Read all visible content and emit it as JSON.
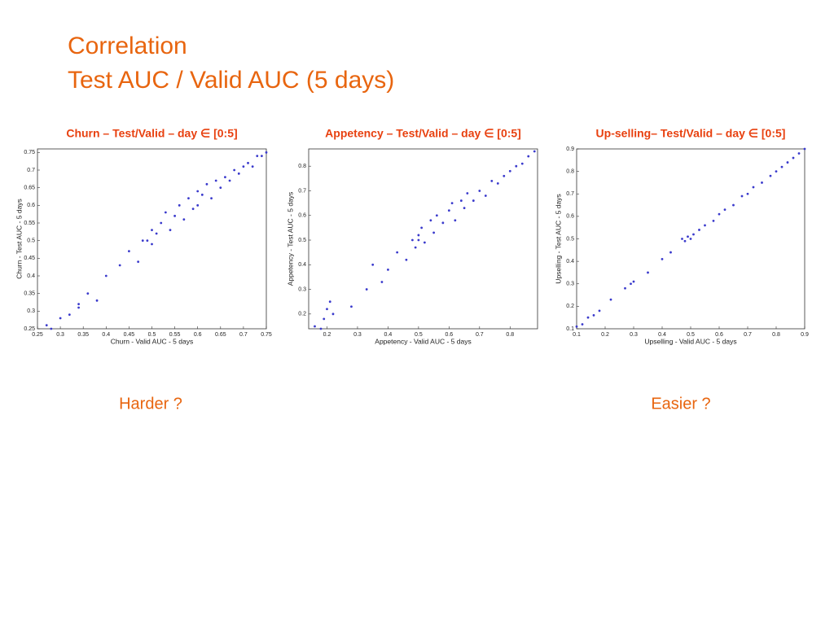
{
  "slide": {
    "title_line_1": "Correlation",
    "title_line_2": "Test AUC / Valid AUC (5 days)"
  },
  "notes": [
    "Harder ?",
    "Easier ?"
  ],
  "chart_data": [
    {
      "type": "scatter",
      "title": "Churn – Test/Valid – day ∈ [0:5]",
      "x_label": "Churn - Valid AUC - 5 days",
      "y_label": "Churn - Test AUC - 5 days",
      "color": "#3a3acc",
      "xlim": [
        0.25,
        0.75
      ],
      "ylim": [
        0.25,
        0.76
      ],
      "xticks": [
        0.25,
        0.3,
        0.35,
        0.4,
        0.45,
        0.5,
        0.55,
        0.6,
        0.65,
        0.7,
        0.75
      ],
      "yticks": [
        0.25,
        0.3,
        0.35,
        0.4,
        0.45,
        0.5,
        0.55,
        0.6,
        0.65,
        0.7,
        0.75
      ],
      "x": [
        0.27,
        0.28,
        0.3,
        0.32,
        0.34,
        0.34,
        0.36,
        0.38,
        0.4,
        0.43,
        0.45,
        0.47,
        0.48,
        0.49,
        0.5,
        0.5,
        0.51,
        0.52,
        0.53,
        0.54,
        0.55,
        0.56,
        0.57,
        0.58,
        0.59,
        0.6,
        0.6,
        0.61,
        0.62,
        0.63,
        0.64,
        0.65,
        0.66,
        0.67,
        0.68,
        0.69,
        0.7,
        0.71,
        0.72,
        0.73,
        0.74,
        0.75
      ],
      "y": [
        0.26,
        0.25,
        0.28,
        0.29,
        0.32,
        0.31,
        0.35,
        0.33,
        0.4,
        0.43,
        0.47,
        0.44,
        0.5,
        0.5,
        0.49,
        0.53,
        0.52,
        0.55,
        0.58,
        0.53,
        0.57,
        0.6,
        0.56,
        0.62,
        0.59,
        0.64,
        0.6,
        0.63,
        0.66,
        0.62,
        0.67,
        0.65,
        0.68,
        0.67,
        0.7,
        0.69,
        0.71,
        0.72,
        0.71,
        0.74,
        0.74,
        0.75
      ]
    },
    {
      "type": "scatter",
      "title": "Appetency – Test/Valid – day ∈ [0:5]",
      "x_label": "Appetency - Valid AUC - 5 days",
      "y_label": "Appetency - Test AUC - 5 days",
      "color": "#3a3acc",
      "xlim": [
        0.14,
        0.89
      ],
      "ylim": [
        0.14,
        0.87
      ],
      "xticks": [
        0.2,
        0.3,
        0.4,
        0.5,
        0.6,
        0.7,
        0.8
      ],
      "yticks": [
        0.2,
        0.3,
        0.4,
        0.5,
        0.6,
        0.7,
        0.8
      ],
      "x": [
        0.16,
        0.18,
        0.19,
        0.2,
        0.21,
        0.22,
        0.28,
        0.33,
        0.35,
        0.38,
        0.4,
        0.43,
        0.46,
        0.48,
        0.49,
        0.5,
        0.5,
        0.51,
        0.52,
        0.54,
        0.55,
        0.56,
        0.58,
        0.6,
        0.61,
        0.62,
        0.64,
        0.65,
        0.66,
        0.68,
        0.7,
        0.72,
        0.74,
        0.76,
        0.78,
        0.8,
        0.82,
        0.84,
        0.86,
        0.88
      ],
      "y": [
        0.15,
        0.14,
        0.18,
        0.22,
        0.25,
        0.2,
        0.23,
        0.3,
        0.4,
        0.33,
        0.38,
        0.45,
        0.42,
        0.5,
        0.47,
        0.5,
        0.52,
        0.55,
        0.49,
        0.58,
        0.53,
        0.6,
        0.57,
        0.62,
        0.65,
        0.58,
        0.66,
        0.63,
        0.69,
        0.66,
        0.7,
        0.68,
        0.74,
        0.73,
        0.76,
        0.78,
        0.8,
        0.81,
        0.84,
        0.86
      ]
    },
    {
      "type": "scatter",
      "title": "Up-selling– Test/Valid – day ∈ [0:5]",
      "x_label": "Upselling - Valid AUC - 5 days",
      "y_label": "Upselling - Test AUC - 5 days",
      "color": "#3a3acc",
      "xlim": [
        0.1,
        0.9
      ],
      "ylim": [
        0.1,
        0.9
      ],
      "xticks": [
        0.1,
        0.2,
        0.3,
        0.4,
        0.5,
        0.6,
        0.7,
        0.8,
        0.9
      ],
      "yticks": [
        0.1,
        0.2,
        0.3,
        0.4,
        0.5,
        0.6,
        0.7,
        0.8,
        0.9
      ],
      "x": [
        0.1,
        0.12,
        0.14,
        0.16,
        0.18,
        0.22,
        0.27,
        0.29,
        0.3,
        0.35,
        0.4,
        0.43,
        0.47,
        0.48,
        0.49,
        0.5,
        0.51,
        0.53,
        0.55,
        0.58,
        0.6,
        0.62,
        0.65,
        0.68,
        0.7,
        0.72,
        0.75,
        0.78,
        0.8,
        0.82,
        0.84,
        0.86,
        0.88,
        0.9
      ],
      "y": [
        0.11,
        0.12,
        0.15,
        0.16,
        0.18,
        0.23,
        0.28,
        0.3,
        0.31,
        0.35,
        0.41,
        0.44,
        0.5,
        0.49,
        0.51,
        0.5,
        0.52,
        0.54,
        0.56,
        0.58,
        0.61,
        0.63,
        0.65,
        0.69,
        0.7,
        0.73,
        0.75,
        0.78,
        0.8,
        0.82,
        0.84,
        0.86,
        0.88,
        0.9
      ]
    }
  ]
}
